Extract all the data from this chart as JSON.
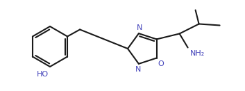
{
  "bg_color": "#ffffff",
  "line_color": "#1a1a1a",
  "label_blue": "#4444bb",
  "lw": 1.5,
  "fs": 8.0,
  "figsize": [
    3.53,
    1.31
  ],
  "dpi": 100,
  "xlim": [
    0,
    353
  ],
  "ylim": [
    0,
    131
  ]
}
